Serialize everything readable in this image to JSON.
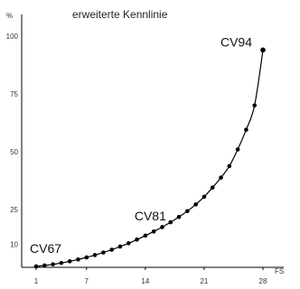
{
  "chart_data": {
    "type": "line",
    "title": "erweiterte Kennlinie",
    "xlabel": "FS",
    "ylabel": "%",
    "xlim": [
      0,
      30
    ],
    "ylim": [
      0,
      100
    ],
    "xticks": [
      1,
      7,
      14,
      21,
      28
    ],
    "yticks": [
      10,
      25,
      50,
      75,
      100
    ],
    "grid": false,
    "series": [
      {
        "x": [
          1,
          2,
          3,
          4,
          5,
          6,
          7,
          8,
          9,
          10,
          11,
          12,
          13,
          14,
          15,
          16,
          17,
          18,
          19,
          20,
          21,
          22,
          23,
          24,
          25,
          26,
          27,
          28
        ],
        "y": [
          0.4,
          0.8,
          1.3,
          1.9,
          2.6,
          3.4,
          4.3,
          5.3,
          6.4,
          7.6,
          9.0,
          10.4,
          12.0,
          13.7,
          15.5,
          17.4,
          19.5,
          21.8,
          24.3,
          27.2,
          30.5,
          34.5,
          38.8,
          43.8,
          51.0,
          59.5,
          70.0,
          94.0
        ]
      }
    ],
    "annotations": [
      {
        "text": "CV67",
        "x": 1,
        "y": 0.4
      },
      {
        "text": "CV81",
        "x": 14,
        "y": 13.7
      },
      {
        "text": "CV94",
        "x": 28,
        "y": 94.0
      }
    ]
  }
}
